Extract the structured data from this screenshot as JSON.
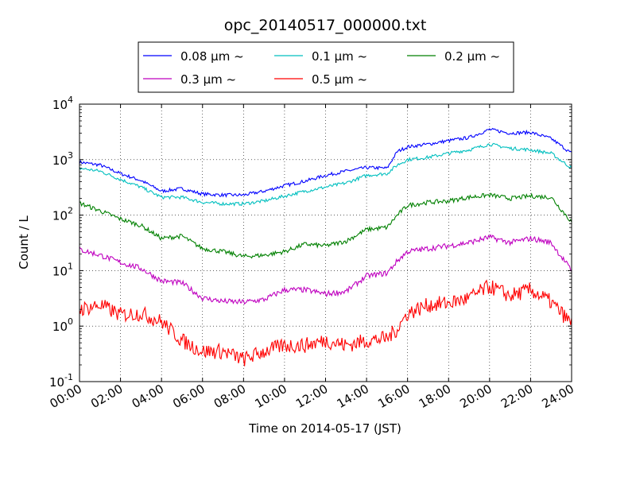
{
  "chart_data": {
    "type": "line",
    "title": "opc_20140517_000000.txt",
    "xlabel": "Time on 2014-05-17 (JST)",
    "ylabel": "Count / L",
    "yscale": "log",
    "ylim": [
      0.1,
      10000
    ],
    "xlim": [
      "00:00",
      "24:00"
    ],
    "grid": true,
    "legend_position": "top-center, above plot",
    "x_ticks": [
      "00:00",
      "02:00",
      "04:00",
      "06:00",
      "08:00",
      "10:00",
      "12:00",
      "14:00",
      "16:00",
      "18:00",
      "20:00",
      "22:00",
      "24:00"
    ],
    "y_ticks": [
      {
        "value": 0.1,
        "base": "10",
        "exp": "-1"
      },
      {
        "value": 1,
        "base": "10",
        "exp": "0"
      },
      {
        "value": 10,
        "base": "10",
        "exp": "1"
      },
      {
        "value": 100,
        "base": "10",
        "exp": "2"
      },
      {
        "value": 1000,
        "base": "10",
        "exp": "3"
      },
      {
        "value": 10000,
        "base": "10",
        "exp": "4"
      }
    ],
    "x": [
      "00:00",
      "01:00",
      "02:00",
      "03:00",
      "04:00",
      "05:00",
      "06:00",
      "07:00",
      "08:00",
      "09:00",
      "10:00",
      "11:00",
      "12:00",
      "13:00",
      "14:00",
      "15:00",
      "15:30",
      "16:00",
      "17:00",
      "18:00",
      "19:00",
      "20:00",
      "21:00",
      "22:00",
      "23:00",
      "24:00"
    ],
    "series": [
      {
        "name": "0.08 μm ~",
        "color": "#0000ff",
        "values": [
          900,
          800,
          560,
          420,
          270,
          300,
          240,
          230,
          230,
          270,
          340,
          410,
          520,
          620,
          720,
          700,
          1400,
          1700,
          1900,
          2200,
          2500,
          3500,
          3000,
          3100,
          2400,
          1300
        ]
      },
      {
        "name": "0.1 μm ~",
        "color": "#00bfbf",
        "values": [
          700,
          620,
          440,
          320,
          210,
          210,
          170,
          160,
          160,
          180,
          220,
          270,
          320,
          380,
          520,
          560,
          800,
          1000,
          1100,
          1300,
          1500,
          1900,
          1600,
          1500,
          1300,
          700
        ]
      },
      {
        "name": "0.2 μm ~",
        "color": "#008000",
        "values": [
          165,
          120,
          85,
          65,
          38,
          42,
          25,
          22,
          18,
          19,
          22,
          30,
          28,
          34,
          55,
          60,
          100,
          150,
          170,
          180,
          210,
          230,
          200,
          220,
          210,
          75
        ]
      },
      {
        "name": "0.3 μm ~",
        "color": "#bf00bf",
        "values": [
          24,
          19,
          14,
          11,
          6.5,
          6,
          3.2,
          2.8,
          2.7,
          3,
          4.5,
          4.5,
          3.8,
          4.2,
          8,
          9,
          15,
          22,
          25,
          28,
          32,
          40,
          32,
          38,
          32,
          10
        ]
      },
      {
        "name": "0.5 μm ~",
        "color": "#ff0000",
        "values": [
          2.0,
          2.4,
          1.6,
          1.7,
          1.2,
          0.55,
          0.35,
          0.35,
          0.25,
          0.35,
          0.45,
          0.45,
          0.55,
          0.45,
          0.55,
          0.6,
          0.9,
          1.7,
          2.4,
          2.6,
          3.2,
          5.2,
          3.5,
          4.5,
          2.7,
          1.1
        ]
      }
    ]
  }
}
